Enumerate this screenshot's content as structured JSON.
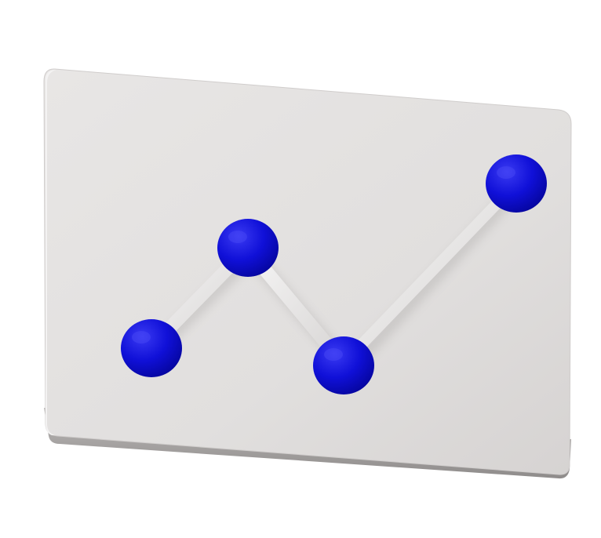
{
  "illustration": {
    "subject": "line-chart-board-icon",
    "colors": {
      "board_face": "#e1dfde",
      "board_edge": "#a9a6a5",
      "connector": "#eceaea",
      "node": "#1010d8",
      "node_highlight": "#3a3af2",
      "node_shadow": "#0606a0"
    },
    "node_count": 4
  }
}
